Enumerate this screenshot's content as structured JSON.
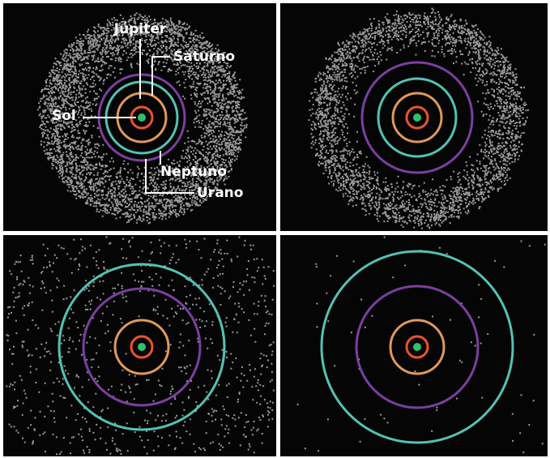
{
  "labels": {
    "jupiter": "Júpiter",
    "saturno": "Saturno",
    "sol": "Sol",
    "neptuno": "Neptuno",
    "urano": "Urano"
  }
}
